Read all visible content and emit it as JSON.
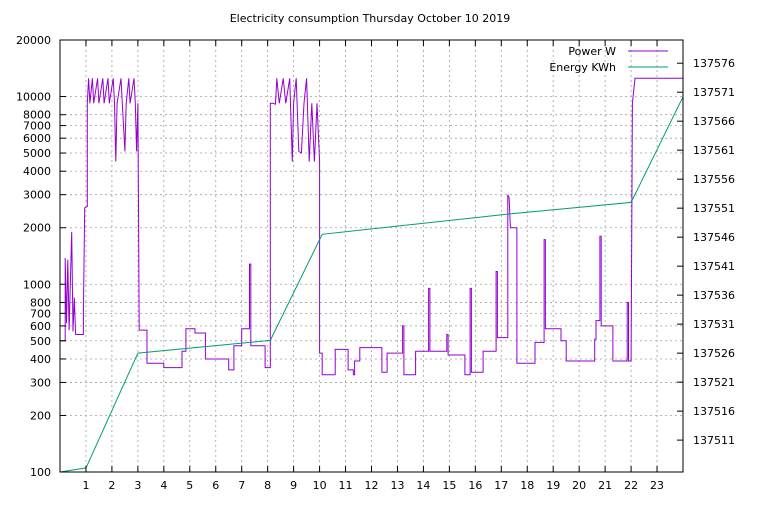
{
  "chart_data": {
    "type": "line",
    "title": "Electricity consumption Thursday October 10 2019",
    "xlabel": "",
    "ylabel": "",
    "xlim": [
      0,
      24
    ],
    "x_ticks": [
      1,
      2,
      3,
      4,
      5,
      6,
      7,
      8,
      9,
      10,
      11,
      12,
      13,
      14,
      15,
      16,
      17,
      18,
      19,
      20,
      21,
      22,
      23
    ],
    "y_scale": "log",
    "ylim": [
      100,
      20000
    ],
    "y_ticks": [
      100,
      200,
      300,
      400,
      500,
      600,
      700,
      800,
      1000,
      2000,
      3000,
      4000,
      5000,
      6000,
      7000,
      8000,
      10000,
      20000
    ],
    "y2_lim": [
      137505.5,
      137580
    ],
    "y2_ticks": [
      137511,
      137516,
      137521,
      137526,
      137531,
      137536,
      137541,
      137546,
      137551,
      137556,
      137561,
      137566,
      137571,
      137576
    ],
    "grid": true,
    "legend_position": "top-right",
    "series": [
      {
        "name": "Power W",
        "color": "#9400d3",
        "axis": "left",
        "points": [
          [
            0,
            500
          ],
          [
            0.2,
            500
          ],
          [
            0.2,
            1380
          ],
          [
            0.25,
            620
          ],
          [
            0.3,
            1350
          ],
          [
            0.35,
            570
          ],
          [
            0.45,
            1900
          ],
          [
            0.5,
            560
          ],
          [
            0.55,
            850
          ],
          [
            0.6,
            540
          ],
          [
            0.9,
            540
          ],
          [
            0.9,
            700
          ],
          [
            0.95,
            2550
          ],
          [
            1.05,
            2600
          ],
          [
            1.05,
            9200
          ],
          [
            1.1,
            12500
          ],
          [
            1.15,
            9200
          ],
          [
            1.25,
            12500
          ],
          [
            1.3,
            9200
          ],
          [
            1.45,
            12500
          ],
          [
            1.5,
            9200
          ],
          [
            1.65,
            12500
          ],
          [
            1.7,
            9200
          ],
          [
            1.85,
            12500
          ],
          [
            1.9,
            9200
          ],
          [
            2.05,
            12500
          ],
          [
            2.1,
            9200
          ],
          [
            2.15,
            4500
          ],
          [
            2.2,
            9200
          ],
          [
            2.35,
            12500
          ],
          [
            2.4,
            9200
          ],
          [
            2.5,
            5100
          ],
          [
            2.55,
            9200
          ],
          [
            2.65,
            12500
          ],
          [
            2.7,
            9200
          ],
          [
            2.85,
            12500
          ],
          [
            2.9,
            9200
          ],
          [
            2.95,
            5100
          ],
          [
            3.0,
            9200
          ],
          [
            3.05,
            570
          ],
          [
            3.35,
            570
          ],
          [
            3.35,
            380
          ],
          [
            4.0,
            380
          ],
          [
            4.0,
            360
          ],
          [
            4.7,
            360
          ],
          [
            4.7,
            440
          ],
          [
            4.85,
            440
          ],
          [
            4.85,
            580
          ],
          [
            5.2,
            580
          ],
          [
            5.2,
            550
          ],
          [
            5.6,
            550
          ],
          [
            5.6,
            400
          ],
          [
            6.5,
            400
          ],
          [
            6.5,
            350
          ],
          [
            6.7,
            350
          ],
          [
            6.7,
            470
          ],
          [
            7.0,
            470
          ],
          [
            7.0,
            580
          ],
          [
            7.3,
            580
          ],
          [
            7.3,
            1280
          ],
          [
            7.35,
            1280
          ],
          [
            7.35,
            470
          ],
          [
            7.9,
            470
          ],
          [
            7.9,
            360
          ],
          [
            8.1,
            360
          ],
          [
            8.1,
            9200
          ],
          [
            8.2,
            9200
          ],
          [
            8.3,
            9100
          ],
          [
            8.35,
            12500
          ],
          [
            8.45,
            9200
          ],
          [
            8.6,
            12500
          ],
          [
            8.7,
            9200
          ],
          [
            8.85,
            12500
          ],
          [
            8.95,
            4500
          ],
          [
            9.0,
            9200
          ],
          [
            9.1,
            12500
          ],
          [
            9.2,
            5100
          ],
          [
            9.3,
            5000
          ],
          [
            9.4,
            9200
          ],
          [
            9.5,
            12500
          ],
          [
            9.6,
            4500
          ],
          [
            9.7,
            9200
          ],
          [
            9.8,
            4500
          ],
          [
            9.9,
            9200
          ],
          [
            10.0,
            4500
          ],
          [
            10.0,
            430
          ],
          [
            10.1,
            430
          ],
          [
            10.1,
            330
          ],
          [
            10.6,
            330
          ],
          [
            10.6,
            450
          ],
          [
            11.1,
            450
          ],
          [
            11.1,
            350
          ],
          [
            11.3,
            350
          ],
          [
            11.3,
            330
          ],
          [
            11.35,
            330
          ],
          [
            11.35,
            390
          ],
          [
            11.55,
            390
          ],
          [
            11.55,
            460
          ],
          [
            12.4,
            460
          ],
          [
            12.4,
            340
          ],
          [
            12.6,
            340
          ],
          [
            12.6,
            430
          ],
          [
            13.2,
            430
          ],
          [
            13.2,
            600
          ],
          [
            13.25,
            600
          ],
          [
            13.25,
            330
          ],
          [
            13.7,
            330
          ],
          [
            13.7,
            440
          ],
          [
            14.2,
            440
          ],
          [
            14.2,
            950
          ],
          [
            14.25,
            950
          ],
          [
            14.25,
            440
          ],
          [
            14.9,
            440
          ],
          [
            14.9,
            540
          ],
          [
            14.95,
            540
          ],
          [
            14.95,
            420
          ],
          [
            15.6,
            420
          ],
          [
            15.6,
            330
          ],
          [
            15.8,
            330
          ],
          [
            15.8,
            950
          ],
          [
            15.85,
            950
          ],
          [
            15.85,
            340
          ],
          [
            16.3,
            340
          ],
          [
            16.3,
            440
          ],
          [
            16.8,
            440
          ],
          [
            16.8,
            1170
          ],
          [
            16.85,
            1170
          ],
          [
            16.85,
            520
          ],
          [
            17.25,
            520
          ],
          [
            17.25,
            3000
          ],
          [
            17.3,
            2900
          ],
          [
            17.35,
            2000
          ],
          [
            17.6,
            2000
          ],
          [
            17.6,
            380
          ],
          [
            18.3,
            380
          ],
          [
            18.3,
            490
          ],
          [
            18.65,
            490
          ],
          [
            18.65,
            1730
          ],
          [
            18.7,
            1730
          ],
          [
            18.7,
            580
          ],
          [
            19.3,
            580
          ],
          [
            19.3,
            500
          ],
          [
            19.5,
            500
          ],
          [
            19.5,
            390
          ],
          [
            20.6,
            390
          ],
          [
            20.6,
            510
          ],
          [
            20.65,
            510
          ],
          [
            20.65,
            640
          ],
          [
            20.8,
            640
          ],
          [
            20.8,
            1800
          ],
          [
            20.85,
            1800
          ],
          [
            20.85,
            600
          ],
          [
            21.3,
            600
          ],
          [
            21.3,
            390
          ],
          [
            21.85,
            390
          ],
          [
            21.85,
            800
          ],
          [
            21.9,
            800
          ],
          [
            21.9,
            390
          ],
          [
            22.0,
            390
          ],
          [
            22.05,
            9200
          ],
          [
            22.15,
            12500
          ],
          [
            22.3,
            12500
          ],
          [
            22.6,
            12500
          ],
          [
            22.8,
            12500
          ],
          [
            23.0,
            12500
          ],
          [
            23.2,
            12500
          ],
          [
            23.4,
            12500
          ],
          [
            23.6,
            12500
          ],
          [
            23.8,
            12500
          ],
          [
            24.0,
            12500
          ]
        ]
      },
      {
        "name": "Energy KWh",
        "color": "#009e73",
        "axis": "right",
        "points": [
          [
            0,
            137505.5
          ],
          [
            1,
            137506.2
          ],
          [
            3,
            137526
          ],
          [
            8.1,
            137528.2
          ],
          [
            10.1,
            137546.5
          ],
          [
            17.3,
            137550
          ],
          [
            22,
            137552
          ],
          [
            24,
            137570.2
          ]
        ]
      }
    ]
  }
}
